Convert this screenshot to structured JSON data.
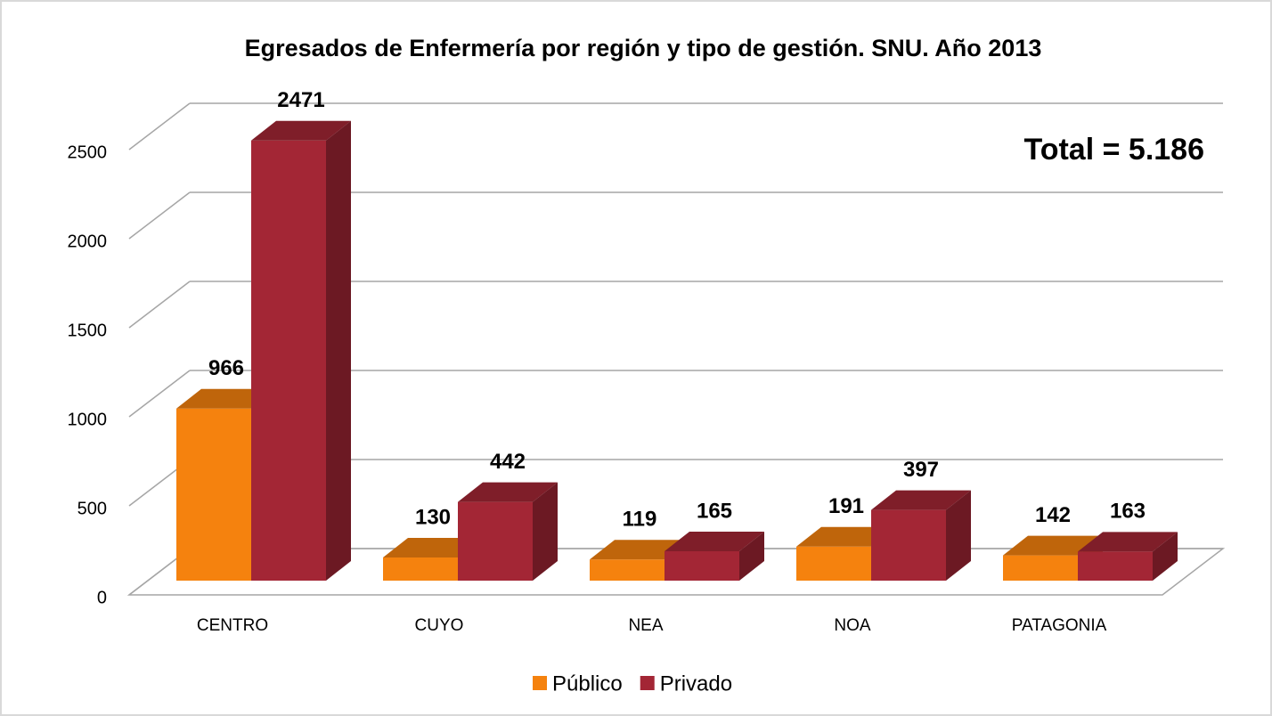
{
  "chart_data": {
    "type": "bar3d",
    "title": "Egresados de Enfermería por región y tipo de gestión. SNU. Año 2013",
    "categories": [
      "CENTRO",
      "CUYO",
      "NEA",
      "NOA",
      "PATAGONIA"
    ],
    "series": [
      {
        "name": "Público",
        "color": "#f5820e",
        "values": [
          966,
          130,
          119,
          191,
          142
        ]
      },
      {
        "name": "Privado",
        "color": "#a32635",
        "values": [
          2471,
          442,
          165,
          397,
          163
        ]
      }
    ],
    "ylim": [
      0,
      2500
    ],
    "yticks": [
      0,
      500,
      1000,
      1500,
      2000,
      2500
    ],
    "grid": true,
    "annotation": "Total = 5.186",
    "legend": "bottom"
  }
}
